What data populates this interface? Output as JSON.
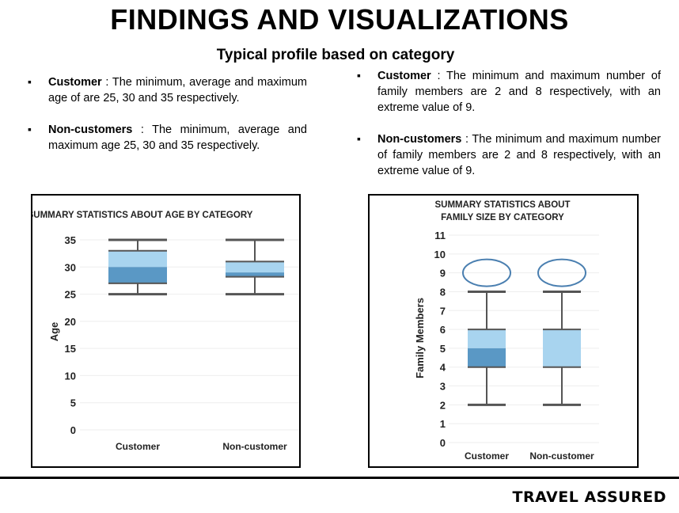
{
  "header": {
    "title": "FINDINGS AND VISUALIZATIONS",
    "subtitle": "Typical profile based on category"
  },
  "left_bullets": [
    {
      "label": "Customer",
      "text": " : The minimum, average and maximum age of are 25, 30 and 35 respectively."
    },
    {
      "label": "Non-customers",
      "text": " : The minimum, average and maximum age 25, 30 and 35 respectively."
    }
  ],
  "right_bullets": [
    {
      "label": "Customer",
      "text": " : The minimum and maximum number of family members are 2 and 8 respectively, with an extreme value of 9."
    },
    {
      "label": "Non-customers",
      "text": " : The minimum and maximum number of family members are 2 and 8 respectively, with an extreme value of 9."
    }
  ],
  "colors": {
    "upper_box": "#a8d4ef",
    "lower_box": "#5a98c5",
    "whisker": "#555555",
    "outlier": "#4a7fb0"
  },
  "footer": {
    "brand": "TRAVEL ASSURED"
  },
  "chart_data": [
    {
      "type": "box",
      "title": "SUMMARY STATISTICS ABOUT AGE BY CATEGORY",
      "xlabel": "",
      "ylabel": "Age",
      "yticks": [
        0,
        5,
        10,
        15,
        20,
        25,
        30,
        35
      ],
      "ylim": [
        0,
        35
      ],
      "categories": [
        "Customer",
        "Non-customer"
      ],
      "boxes": [
        {
          "min": 25,
          "q1": 27,
          "median": 30,
          "q3": 33,
          "max": 35,
          "outliers": []
        },
        {
          "min": 25,
          "q1": 28.2,
          "median": 29,
          "q3": 31,
          "max": 35,
          "outliers": []
        }
      ]
    },
    {
      "type": "box",
      "title": "SUMMARY STATISTICS ABOUT FAMILY SIZE BY CATEGORY",
      "xlabel": "",
      "ylabel": "Family Members",
      "yticks": [
        0,
        1,
        2,
        3,
        4,
        5,
        6,
        7,
        8,
        9,
        10,
        11
      ],
      "ylim": [
        0,
        11
      ],
      "categories": [
        "Customer",
        "Non-customer"
      ],
      "boxes": [
        {
          "min": 2,
          "q1": 4,
          "median": 5,
          "q3": 6,
          "max": 8,
          "outliers": [
            9
          ]
        },
        {
          "min": 2,
          "q1": 4,
          "median": 4,
          "q3": 6,
          "max": 8,
          "outliers": [
            9
          ]
        }
      ]
    }
  ]
}
